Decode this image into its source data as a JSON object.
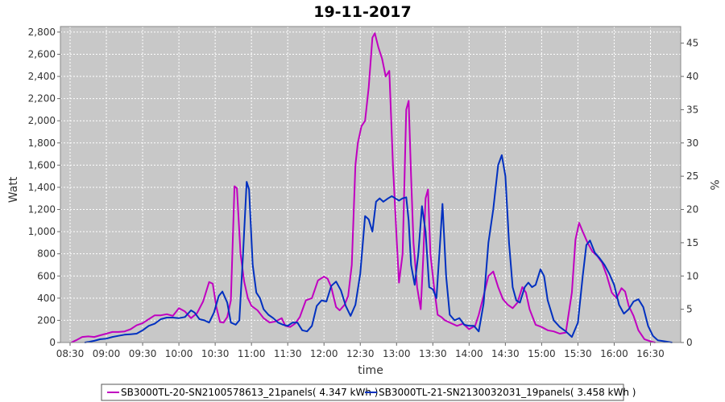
{
  "chart_data": {
    "type": "line",
    "title": "19-11-2017",
    "xlabel": "time",
    "ylabel": "Watt",
    "y2label": "%",
    "ylim": [
      0,
      2850
    ],
    "y2lim": [
      0,
      47.5
    ],
    "xlim": [
      "08:22",
      "16:55"
    ],
    "x_ticks": [
      "08:30",
      "09:00",
      "09:30",
      "10:00",
      "10:30",
      "11:00",
      "11:30",
      "12:00",
      "12:30",
      "13:00",
      "13:30",
      "14:00",
      "14:30",
      "15:00",
      "15:30",
      "16:00",
      "16:30"
    ],
    "y_ticks": [
      0,
      200,
      400,
      600,
      800,
      1000,
      1200,
      1400,
      1600,
      1800,
      2000,
      2200,
      2400,
      2600,
      2800
    ],
    "y_tick_labels": [
      "0",
      "200",
      "400",
      "600",
      "800",
      "1,000",
      "1,200",
      "1,400",
      "1,600",
      "1,800",
      "2,000",
      "2,200",
      "2,400",
      "2,600",
      "2,800"
    ],
    "y2_ticks": [
      0,
      5,
      10,
      15,
      20,
      25,
      30,
      35,
      40,
      45
    ],
    "grid": true,
    "legend_position": "bottom",
    "colors": {
      "plot_bg": "#c8c8c8",
      "grid": "#ffffff",
      "frame": "#888888"
    },
    "series": [
      {
        "name": "SB3000TL-20-SN2100578613_21panels( 4.347 kWh )",
        "color": "#c000c0",
        "points": [
          [
            "08:31",
            0
          ],
          [
            "08:35",
            20
          ],
          [
            "08:40",
            50
          ],
          [
            "08:45",
            55
          ],
          [
            "08:50",
            50
          ],
          [
            "08:55",
            65
          ],
          [
            "09:00",
            80
          ],
          [
            "09:05",
            95
          ],
          [
            "09:10",
            95
          ],
          [
            "09:15",
            100
          ],
          [
            "09:20",
            120
          ],
          [
            "09:25",
            155
          ],
          [
            "09:30",
            175
          ],
          [
            "09:35",
            210
          ],
          [
            "09:40",
            245
          ],
          [
            "09:45",
            245
          ],
          [
            "09:50",
            255
          ],
          [
            "09:55",
            240
          ],
          [
            "10:00",
            310
          ],
          [
            "10:05",
            280
          ],
          [
            "10:10",
            220
          ],
          [
            "10:15",
            265
          ],
          [
            "10:20",
            370
          ],
          [
            "10:25",
            545
          ],
          [
            "10:28",
            530
          ],
          [
            "10:31",
            320
          ],
          [
            "10:34",
            185
          ],
          [
            "10:37",
            180
          ],
          [
            "10:40",
            230
          ],
          [
            "10:43",
            380
          ],
          [
            "10:46",
            1410
          ],
          [
            "10:48",
            1390
          ],
          [
            "10:51",
            800
          ],
          [
            "10:54",
            550
          ],
          [
            "10:57",
            400
          ],
          [
            "11:00",
            330
          ],
          [
            "11:05",
            290
          ],
          [
            "11:10",
            220
          ],
          [
            "11:15",
            180
          ],
          [
            "11:20",
            190
          ],
          [
            "11:25",
            220
          ],
          [
            "11:28",
            150
          ],
          [
            "11:32",
            140
          ],
          [
            "11:36",
            170
          ],
          [
            "11:40",
            230
          ],
          [
            "11:45",
            380
          ],
          [
            "11:50",
            400
          ],
          [
            "11:55",
            560
          ],
          [
            "12:00",
            595
          ],
          [
            "12:03",
            575
          ],
          [
            "12:06",
            500
          ],
          [
            "12:10",
            320
          ],
          [
            "12:13",
            290
          ],
          [
            "12:17",
            340
          ],
          [
            "12:20",
            420
          ],
          [
            "12:23",
            700
          ],
          [
            "12:26",
            1600
          ],
          [
            "12:28",
            1800
          ],
          [
            "12:31",
            1950
          ],
          [
            "12:34",
            2000
          ],
          [
            "12:37",
            2300
          ],
          [
            "12:40",
            2750
          ],
          [
            "12:42",
            2790
          ],
          [
            "12:45",
            2660
          ],
          [
            "12:48",
            2560
          ],
          [
            "12:51",
            2400
          ],
          [
            "12:54",
            2450
          ],
          [
            "12:57",
            1600
          ],
          [
            "13:00",
            950
          ],
          [
            "13:02",
            540
          ],
          [
            "13:05",
            800
          ],
          [
            "13:08",
            2100
          ],
          [
            "13:10",
            2180
          ],
          [
            "13:12",
            1500
          ],
          [
            "13:14",
            900
          ],
          [
            "13:17",
            500
          ],
          [
            "13:20",
            300
          ],
          [
            "13:22",
            750
          ],
          [
            "13:24",
            1300
          ],
          [
            "13:26",
            1380
          ],
          [
            "13:28",
            800
          ],
          [
            "13:31",
            500
          ],
          [
            "13:34",
            250
          ],
          [
            "13:37",
            230
          ],
          [
            "13:40",
            200
          ],
          [
            "13:45",
            175
          ],
          [
            "13:50",
            150
          ],
          [
            "13:55",
            170
          ],
          [
            "14:00",
            120
          ],
          [
            "14:05",
            150
          ],
          [
            "14:08",
            250
          ],
          [
            "14:12",
            420
          ],
          [
            "14:16",
            600
          ],
          [
            "14:20",
            640
          ],
          [
            "14:24",
            500
          ],
          [
            "14:28",
            390
          ],
          [
            "14:32",
            340
          ],
          [
            "14:36",
            310
          ],
          [
            "14:40",
            360
          ],
          [
            "14:44",
            500
          ],
          [
            "14:47",
            450
          ],
          [
            "14:50",
            300
          ],
          [
            "14:55",
            160
          ],
          [
            "15:00",
            140
          ],
          [
            "15:05",
            110
          ],
          [
            "15:10",
            100
          ],
          [
            "15:15",
            80
          ],
          [
            "15:20",
            90
          ],
          [
            "15:25",
            450
          ],
          [
            "15:28",
            930
          ],
          [
            "15:31",
            1080
          ],
          [
            "15:34",
            1000
          ],
          [
            "15:38",
            900
          ],
          [
            "15:42",
            820
          ],
          [
            "15:46",
            780
          ],
          [
            "15:50",
            720
          ],
          [
            "15:54",
            600
          ],
          [
            "15:58",
            450
          ],
          [
            "16:02",
            400
          ],
          [
            "16:06",
            490
          ],
          [
            "16:09",
            460
          ],
          [
            "16:12",
            330
          ],
          [
            "16:16",
            240
          ],
          [
            "16:20",
            110
          ],
          [
            "16:25",
            30
          ],
          [
            "16:30",
            10
          ],
          [
            "16:34",
            0
          ]
        ]
      },
      {
        "name": "SB3000TL-21-SN2130032031_19panels( 3.458 kWh )",
        "color": "#0030c0",
        "points": [
          [
            "08:42",
            0
          ],
          [
            "08:45",
            5
          ],
          [
            "08:50",
            15
          ],
          [
            "08:55",
            30
          ],
          [
            "09:00",
            35
          ],
          [
            "09:05",
            50
          ],
          [
            "09:10",
            60
          ],
          [
            "09:15",
            70
          ],
          [
            "09:20",
            75
          ],
          [
            "09:25",
            80
          ],
          [
            "09:30",
            110
          ],
          [
            "09:35",
            150
          ],
          [
            "09:40",
            170
          ],
          [
            "09:45",
            210
          ],
          [
            "09:50",
            225
          ],
          [
            "09:55",
            225
          ],
          [
            "10:00",
            220
          ],
          [
            "10:05",
            230
          ],
          [
            "10:10",
            290
          ],
          [
            "10:13",
            270
          ],
          [
            "10:17",
            210
          ],
          [
            "10:21",
            200
          ],
          [
            "10:25",
            180
          ],
          [
            "10:29",
            270
          ],
          [
            "10:33",
            420
          ],
          [
            "10:36",
            460
          ],
          [
            "10:40",
            360
          ],
          [
            "10:43",
            180
          ],
          [
            "10:47",
            160
          ],
          [
            "10:50",
            200
          ],
          [
            "10:53",
            780
          ],
          [
            "10:56",
            1450
          ],
          [
            "10:58",
            1380
          ],
          [
            "11:01",
            700
          ],
          [
            "11:04",
            450
          ],
          [
            "11:07",
            400
          ],
          [
            "11:10",
            300
          ],
          [
            "11:14",
            250
          ],
          [
            "11:18",
            220
          ],
          [
            "11:22",
            180
          ],
          [
            "11:26",
            160
          ],
          [
            "11:30",
            150
          ],
          [
            "11:34",
            180
          ],
          [
            "11:38",
            180
          ],
          [
            "11:42",
            110
          ],
          [
            "11:46",
            100
          ],
          [
            "11:50",
            150
          ],
          [
            "11:54",
            330
          ],
          [
            "11:58",
            380
          ],
          [
            "12:02",
            370
          ],
          [
            "12:06",
            510
          ],
          [
            "12:10",
            550
          ],
          [
            "12:14",
            470
          ],
          [
            "12:18",
            330
          ],
          [
            "12:22",
            240
          ],
          [
            "12:26",
            340
          ],
          [
            "12:30",
            620
          ],
          [
            "12:34",
            1140
          ],
          [
            "12:37",
            1110
          ],
          [
            "12:40",
            1000
          ],
          [
            "12:43",
            1270
          ],
          [
            "12:46",
            1300
          ],
          [
            "12:49",
            1270
          ],
          [
            "12:53",
            1300
          ],
          [
            "12:56",
            1320
          ],
          [
            "12:59",
            1300
          ],
          [
            "13:02",
            1280
          ],
          [
            "13:05",
            1300
          ],
          [
            "13:08",
            1310
          ],
          [
            "13:10",
            1100
          ],
          [
            "13:12",
            700
          ],
          [
            "13:15",
            520
          ],
          [
            "13:18",
            800
          ],
          [
            "13:21",
            1230
          ],
          [
            "13:24",
            1000
          ],
          [
            "13:27",
            500
          ],
          [
            "13:30",
            480
          ],
          [
            "13:33",
            400
          ],
          [
            "13:36",
            900
          ],
          [
            "13:38",
            1250
          ],
          [
            "13:41",
            600
          ],
          [
            "13:44",
            250
          ],
          [
            "13:48",
            200
          ],
          [
            "13:52",
            220
          ],
          [
            "13:56",
            160
          ],
          [
            "14:00",
            150
          ],
          [
            "14:04",
            150
          ],
          [
            "14:08",
            100
          ],
          [
            "14:12",
            350
          ],
          [
            "14:16",
            900
          ],
          [
            "14:20",
            1200
          ],
          [
            "14:24",
            1600
          ],
          [
            "14:27",
            1690
          ],
          [
            "14:30",
            1500
          ],
          [
            "14:33",
            900
          ],
          [
            "14:36",
            500
          ],
          [
            "14:39",
            380
          ],
          [
            "14:42",
            360
          ],
          [
            "14:46",
            500
          ],
          [
            "14:49",
            540
          ],
          [
            "14:52",
            500
          ],
          [
            "14:55",
            520
          ],
          [
            "14:59",
            660
          ],
          [
            "15:02",
            600
          ],
          [
            "15:05",
            380
          ],
          [
            "15:10",
            200
          ],
          [
            "15:15",
            140
          ],
          [
            "15:20",
            100
          ],
          [
            "15:25",
            50
          ],
          [
            "15:30",
            180
          ],
          [
            "15:34",
            600
          ],
          [
            "15:37",
            880
          ],
          [
            "15:40",
            920
          ],
          [
            "15:44",
            810
          ],
          [
            "15:48",
            760
          ],
          [
            "15:52",
            700
          ],
          [
            "15:56",
            620
          ],
          [
            "16:00",
            520
          ],
          [
            "16:04",
            340
          ],
          [
            "16:08",
            260
          ],
          [
            "16:12",
            300
          ],
          [
            "16:16",
            370
          ],
          [
            "16:20",
            390
          ],
          [
            "16:24",
            320
          ],
          [
            "16:28",
            150
          ],
          [
            "16:32",
            60
          ],
          [
            "16:36",
            20
          ],
          [
            "16:42",
            10
          ],
          [
            "16:48",
            0
          ]
        ]
      }
    ]
  }
}
